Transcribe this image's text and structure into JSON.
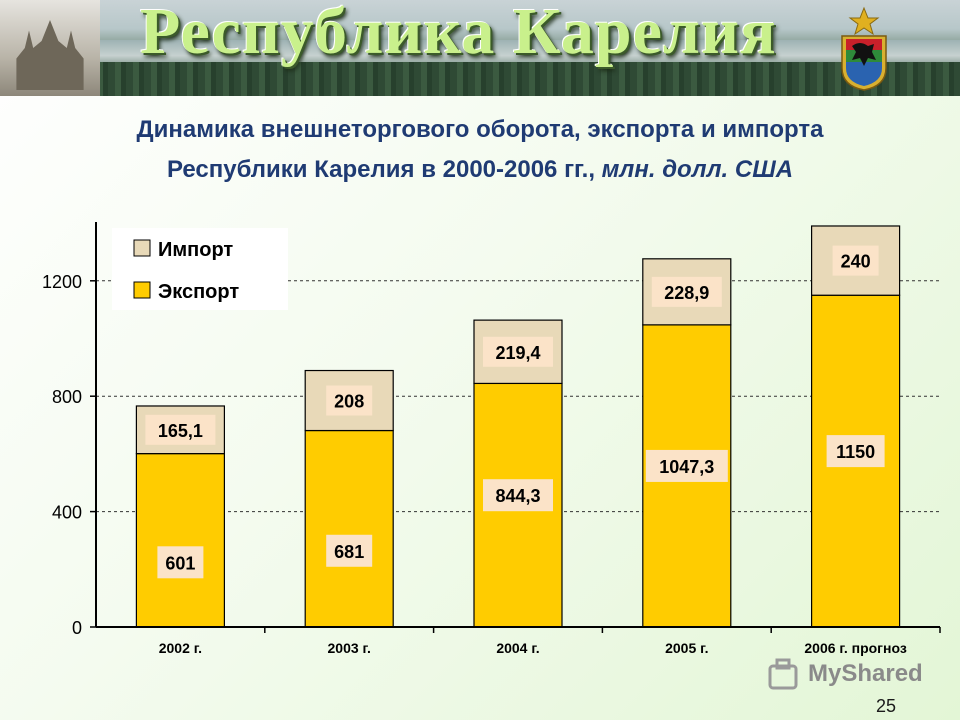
{
  "banner": {
    "title": "Республика Карелия"
  },
  "heading": {
    "line1": "Динамика внешнеторгового оборота, экспорта и импорта",
    "line2_main": "Республики Карелия в 2000-2006 гг.,",
    "line2_unit": "млн. долл. США"
  },
  "page_number": "25",
  "watermark": {
    "text": "MyShared"
  },
  "colors": {
    "export": "#ffcc00",
    "import": "#e8d9b8",
    "label_bg": "#fbe3c8",
    "title": "#1f3b73"
  },
  "chart_data": {
    "type": "bar",
    "stacked": true,
    "categories": [
      "2002 г.",
      "2003 г.",
      "2004 г.",
      "2005 г.",
      "2006 г. прогноз"
    ],
    "series": [
      {
        "name": "Экспорт",
        "values": [
          601,
          681,
          844.3,
          1047.3,
          1150
        ],
        "labels": [
          "601",
          "681",
          "844,3",
          "1047,3",
          "1150"
        ]
      },
      {
        "name": "Импорт",
        "values": [
          165.1,
          208,
          219.4,
          228.9,
          240
        ],
        "labels": [
          "165,1",
          "208",
          "219,4",
          "228,9",
          "240"
        ]
      }
    ],
    "yticks": [
      "0",
      "400",
      "800",
      "1200"
    ],
    "ylim": [
      0,
      1400
    ],
    "legend_position": "top-left",
    "grid": true
  }
}
